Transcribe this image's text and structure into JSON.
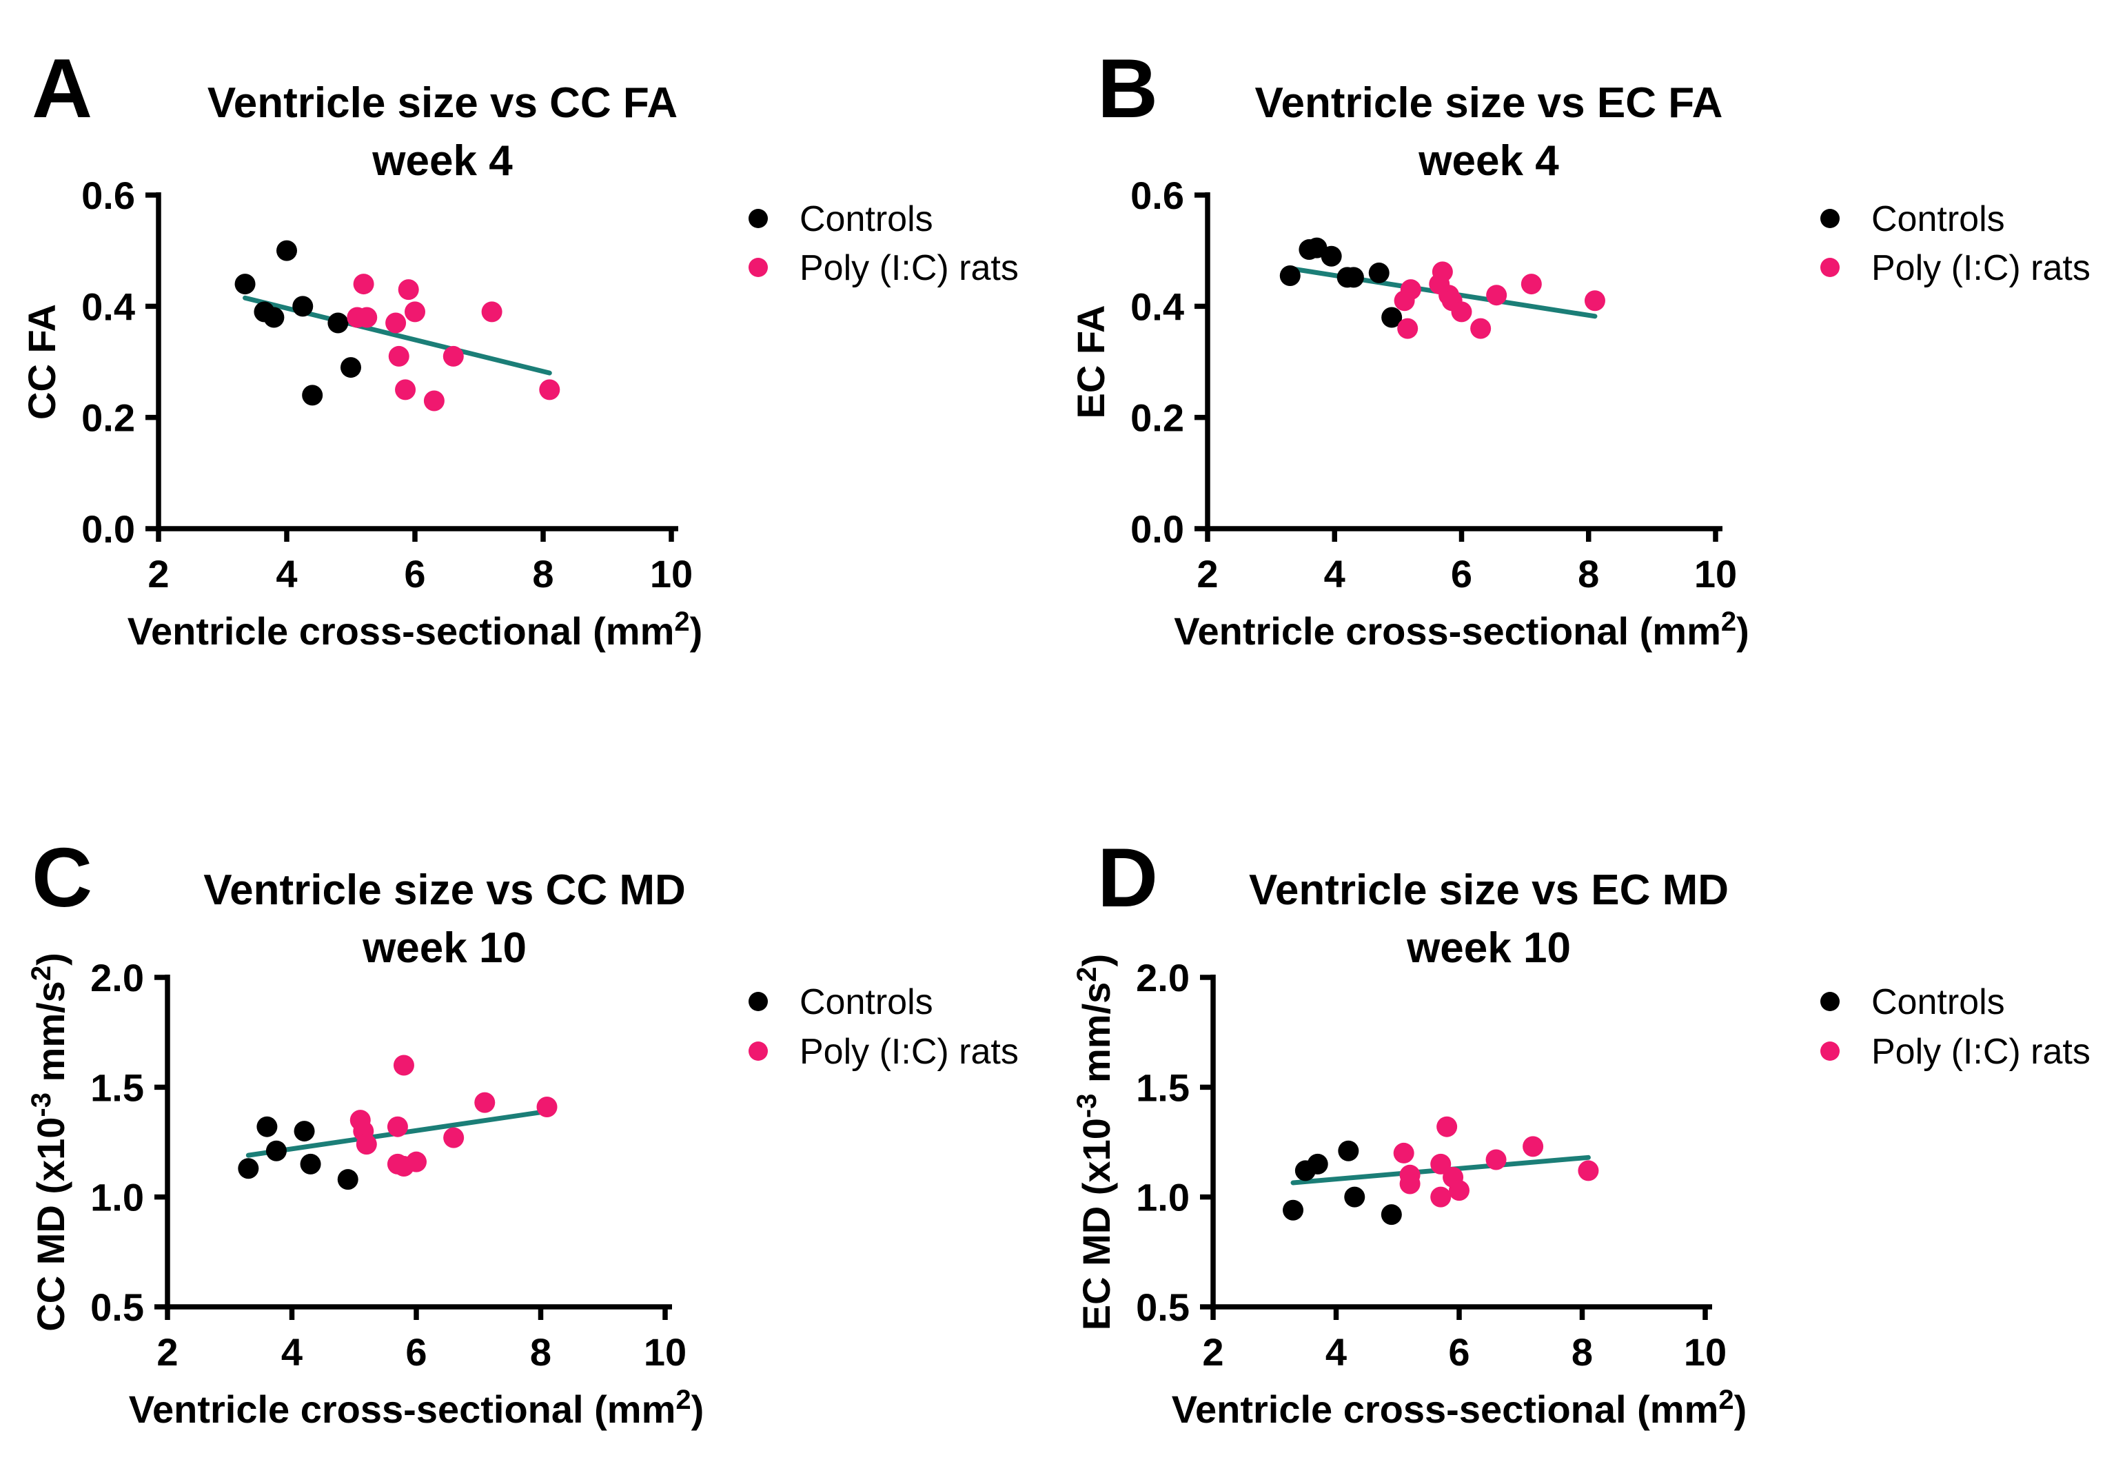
{
  "figure": {
    "background": "#ffffff",
    "colors": {
      "controls": "#000000",
      "poly": "#F0186F",
      "trend": "#1B7E77",
      "axis": "#000000",
      "text": "#000000"
    },
    "legend_labels": [
      "Controls",
      "Poly (I:C) rats"
    ]
  },
  "chart_data": [
    {
      "id": "A",
      "letter": "A",
      "type": "scatter",
      "title": "Ventricle size vs CC FA",
      "subtitle": "week 4",
      "xlabel_segments": [
        {
          "t": "Ventricle cross-sectional (mm"
        },
        {
          "t": "2",
          "sup": true
        },
        {
          "t": ")"
        }
      ],
      "ylabel_segments": [
        {
          "t": "CC FA"
        }
      ],
      "xlim": [
        2,
        10
      ],
      "ylim": [
        0,
        0.6
      ],
      "xtick_values": [
        2,
        4,
        6,
        8,
        10
      ],
      "xtick_labels": [
        "2",
        "4",
        "6",
        "8",
        "10"
      ],
      "ytick_values": [
        0,
        0.2,
        0.4,
        0.6
      ],
      "ytick_labels": [
        "0.0",
        "0.2",
        "0.4",
        "0.6"
      ],
      "grid": false,
      "legend": [
        "Controls",
        "Poly (I:C) rats"
      ],
      "series": [
        {
          "name": "Controls",
          "color_key": "controls",
          "points": [
            [
              3.35,
              0.44
            ],
            [
              4.0,
              0.5
            ],
            [
              3.65,
              0.39
            ],
            [
              3.8,
              0.38
            ],
            [
              4.25,
              0.4
            ],
            [
              4.8,
              0.37
            ],
            [
              5.0,
              0.29
            ],
            [
              4.4,
              0.24
            ]
          ]
        },
        {
          "name": "Poly (I:C) rats",
          "color_key": "poly",
          "points": [
            [
              5.2,
              0.44
            ],
            [
              5.9,
              0.43
            ],
            [
              5.1,
              0.38
            ],
            [
              5.25,
              0.38
            ],
            [
              5.7,
              0.37
            ],
            [
              6.0,
              0.39
            ],
            [
              7.2,
              0.39
            ],
            [
              5.75,
              0.31
            ],
            [
              6.6,
              0.31
            ],
            [
              5.85,
              0.25
            ],
            [
              6.3,
              0.23
            ],
            [
              8.1,
              0.25
            ]
          ]
        }
      ],
      "trend_line": {
        "x1": 3.35,
        "y1": 0.415,
        "x2": 8.1,
        "y2": 0.28
      }
    },
    {
      "id": "B",
      "letter": "B",
      "type": "scatter",
      "title": "Ventricle size vs EC FA",
      "subtitle": "week 4",
      "xlabel_segments": [
        {
          "t": "Ventricle cross-sectional (mm"
        },
        {
          "t": "2",
          "sup": true
        },
        {
          "t": ")"
        }
      ],
      "ylabel_segments": [
        {
          "t": "EC FA"
        }
      ],
      "xlim": [
        2,
        10
      ],
      "ylim": [
        0,
        0.6
      ],
      "xtick_values": [
        2,
        4,
        6,
        8,
        10
      ],
      "xtick_labels": [
        "2",
        "4",
        "6",
        "8",
        "10"
      ],
      "ytick_values": [
        0,
        0.2,
        0.4,
        0.6
      ],
      "ytick_labels": [
        "0.0",
        "0.2",
        "0.4",
        "0.6"
      ],
      "grid": false,
      "legend": [
        "Controls",
        "Poly (I:C) rats"
      ],
      "series": [
        {
          "name": "Controls",
          "color_key": "controls",
          "points": [
            [
              3.3,
              0.455
            ],
            [
              3.6,
              0.502
            ],
            [
              3.72,
              0.505
            ],
            [
              3.95,
              0.49
            ],
            [
              4.2,
              0.452
            ],
            [
              4.3,
              0.452
            ],
            [
              4.7,
              0.46
            ],
            [
              4.9,
              0.38
            ]
          ]
        },
        {
          "name": "Poly (I:C) rats",
          "color_key": "poly",
          "points": [
            [
              5.2,
              0.43
            ],
            [
              5.1,
              0.41
            ],
            [
              5.15,
              0.36
            ],
            [
              5.7,
              0.462
            ],
            [
              5.65,
              0.44
            ],
            [
              5.8,
              0.42
            ],
            [
              5.85,
              0.41
            ],
            [
              6.0,
              0.39
            ],
            [
              6.3,
              0.36
            ],
            [
              6.55,
              0.42
            ],
            [
              7.1,
              0.44
            ],
            [
              8.1,
              0.41
            ]
          ]
        }
      ],
      "trend_line": {
        "x1": 3.3,
        "y1": 0.468,
        "x2": 8.1,
        "y2": 0.382
      }
    },
    {
      "id": "C",
      "letter": "C",
      "type": "scatter",
      "title": "Ventricle size vs CC MD",
      "subtitle": "week 10",
      "xlabel_segments": [
        {
          "t": "Ventricle cross-sectional (mm"
        },
        {
          "t": "2",
          "sup": true
        },
        {
          "t": ")"
        }
      ],
      "ylabel_segments": [
        {
          "t": "CC MD (x10"
        },
        {
          "t": "-3",
          "sup": true
        },
        {
          "t": " mm/s"
        },
        {
          "t": "2",
          "sup": true
        },
        {
          "t": ")"
        }
      ],
      "xlim": [
        2,
        10
      ],
      "ylim": [
        0.5,
        2.0
      ],
      "xtick_values": [
        2,
        4,
        6,
        8,
        10
      ],
      "xtick_labels": [
        "2",
        "4",
        "6",
        "8",
        "10"
      ],
      "ytick_values": [
        0.5,
        1.0,
        1.5,
        2.0
      ],
      "ytick_labels": [
        "0.5",
        "1.0",
        "1.5",
        "2.0"
      ],
      "grid": false,
      "legend": [
        "Controls",
        "Poly (I:C) rats"
      ],
      "series": [
        {
          "name": "Controls",
          "color_key": "controls",
          "points": [
            [
              3.3,
              1.13
            ],
            [
              3.6,
              1.32
            ],
            [
              3.75,
              1.21
            ],
            [
              4.2,
              1.3
            ],
            [
              4.3,
              1.15
            ],
            [
              4.9,
              1.08
            ]
          ]
        },
        {
          "name": "Poly (I:C) rats",
          "color_key": "poly",
          "points": [
            [
              5.1,
              1.35
            ],
            [
              5.15,
              1.3
            ],
            [
              5.2,
              1.24
            ],
            [
              5.8,
              1.6
            ],
            [
              5.7,
              1.32
            ],
            [
              5.7,
              1.15
            ],
            [
              5.8,
              1.14
            ],
            [
              6.0,
              1.16
            ],
            [
              6.6,
              1.27
            ],
            [
              7.1,
              1.43
            ],
            [
              8.1,
              1.41
            ]
          ]
        }
      ],
      "trend_line": {
        "x1": 3.3,
        "y1": 1.19,
        "x2": 8.1,
        "y2": 1.39
      }
    },
    {
      "id": "D",
      "letter": "D",
      "type": "scatter",
      "title": "Ventricle size vs EC MD",
      "subtitle": "week 10",
      "xlabel_segments": [
        {
          "t": "Ventricle cross-sectional (mm"
        },
        {
          "t": "2",
          "sup": true
        },
        {
          "t": ")"
        }
      ],
      "ylabel_segments": [
        {
          "t": "EC MD (x10"
        },
        {
          "t": "-3",
          "sup": true
        },
        {
          "t": " mm/s"
        },
        {
          "t": "2",
          "sup": true
        },
        {
          "t": ")"
        }
      ],
      "xlim": [
        2,
        10
      ],
      "ylim": [
        0.5,
        2.0
      ],
      "xtick_values": [
        2,
        4,
        6,
        8,
        10
      ],
      "xtick_labels": [
        "2",
        "4",
        "6",
        "8",
        "10"
      ],
      "ytick_values": [
        0.5,
        1.0,
        1.5,
        2.0
      ],
      "ytick_labels": [
        "0.5",
        "1.0",
        "1.5",
        "2.0"
      ],
      "grid": false,
      "legend": [
        "Controls",
        "Poly (I:C) rats"
      ],
      "series": [
        {
          "name": "Controls",
          "color_key": "controls",
          "points": [
            [
              3.3,
              0.94
            ],
            [
              3.5,
              1.12
            ],
            [
              3.7,
              1.15
            ],
            [
              4.2,
              1.21
            ],
            [
              4.3,
              1.0
            ],
            [
              4.9,
              0.92
            ]
          ]
        },
        {
          "name": "Poly (I:C) rats",
          "color_key": "poly",
          "points": [
            [
              5.1,
              1.2
            ],
            [
              5.2,
              1.1
            ],
            [
              5.2,
              1.06
            ],
            [
              5.8,
              1.32
            ],
            [
              5.7,
              1.15
            ],
            [
              5.9,
              1.09
            ],
            [
              6.0,
              1.03
            ],
            [
              5.7,
              1.0
            ],
            [
              6.6,
              1.17
            ],
            [
              7.2,
              1.23
            ],
            [
              8.1,
              1.12
            ]
          ]
        }
      ],
      "trend_line": {
        "x1": 3.3,
        "y1": 1.065,
        "x2": 8.1,
        "y2": 1.18
      }
    }
  ]
}
